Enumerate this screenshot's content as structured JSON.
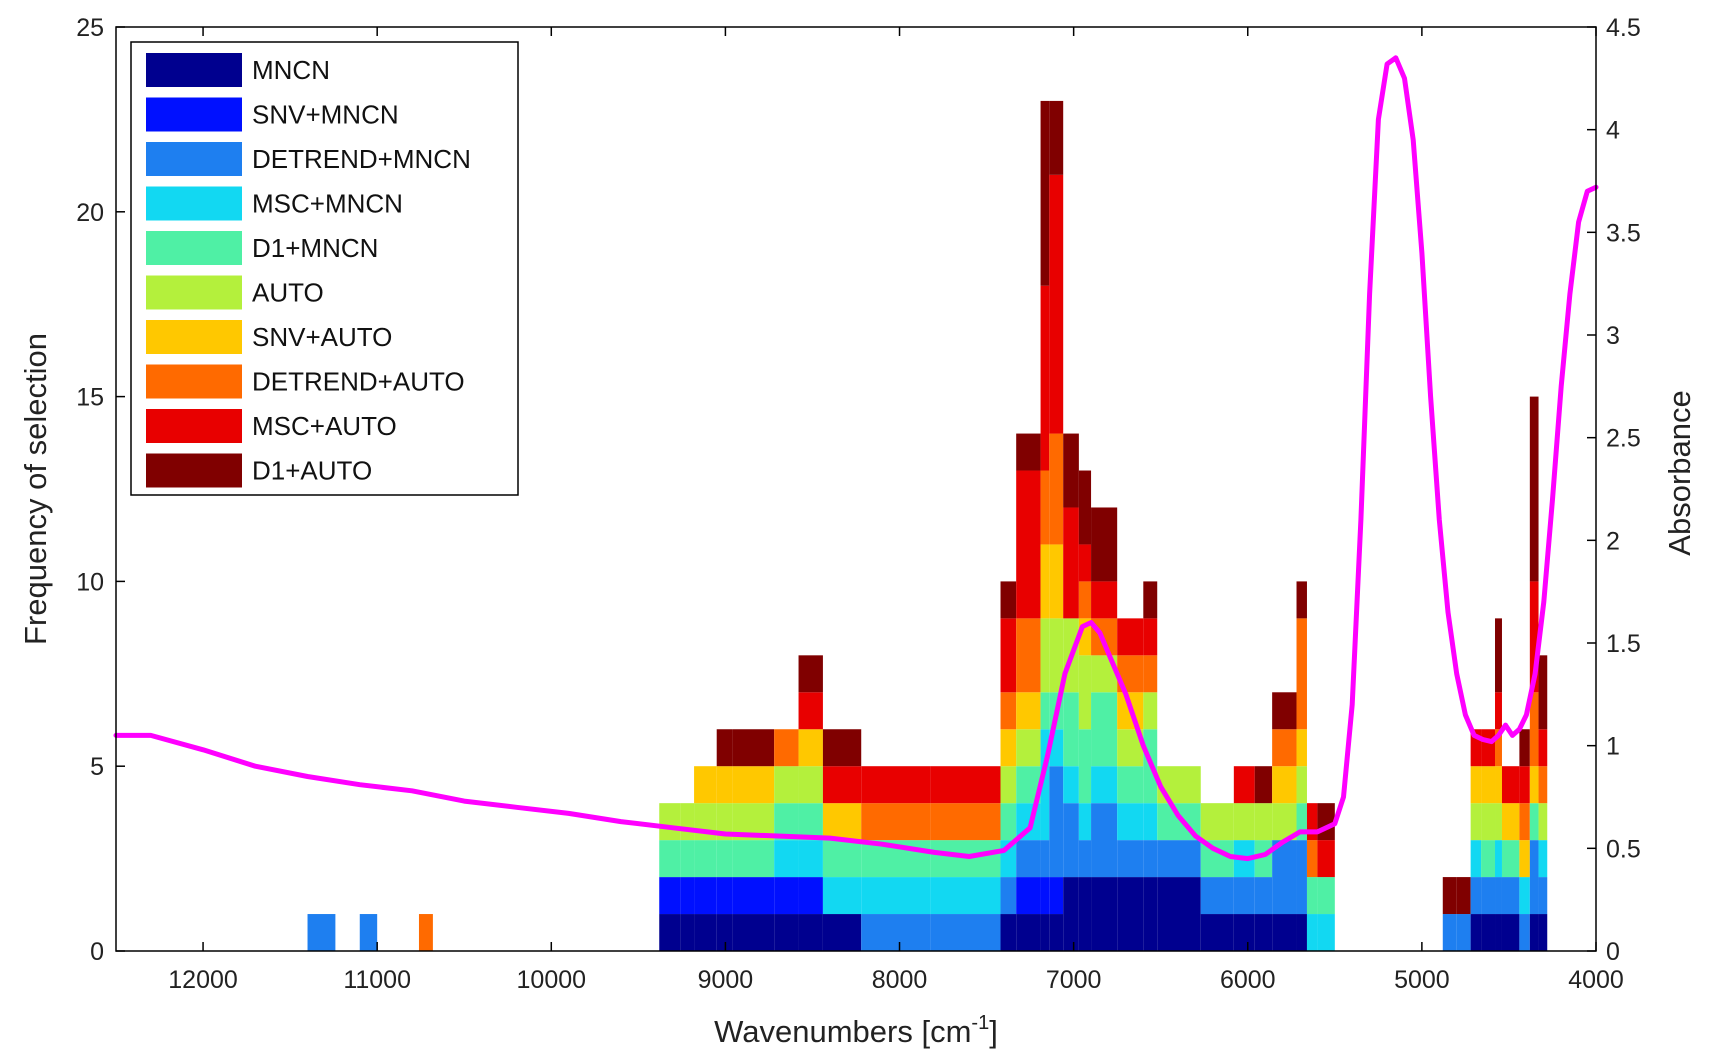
{
  "chart_data": {
    "type": "bar",
    "subtype": "stacked histogram with overlaid line on secondary axis",
    "xlabel": "Wavenumbers [cm",
    "xlabel_superscript": "-1",
    "xlabel_suffix": "]",
    "ylabel_left": "Frequency of selection",
    "ylabel_right": "Absorbance",
    "x_reversed": true,
    "xlim": [
      12500,
      4000
    ],
    "ylim_left": [
      0,
      25
    ],
    "ylim_right": [
      0,
      4.5
    ],
    "x_ticks": [
      "12000",
      "11000",
      "10000",
      "9000",
      "8000",
      "7000",
      "6000",
      "5000",
      "4000"
    ],
    "x_tick_values": [
      12000,
      11000,
      10000,
      9000,
      8000,
      7000,
      6000,
      5000,
      4000
    ],
    "y_left_ticks": [
      "0",
      "5",
      "10",
      "15",
      "20",
      "25"
    ],
    "y_left_tick_values": [
      0,
      5,
      10,
      15,
      20,
      25
    ],
    "y_right_ticks": [
      "0",
      "0.5",
      "1",
      "1.5",
      "2",
      "2.5",
      "3",
      "3.5",
      "4",
      "4.5"
    ],
    "y_right_tick_values": [
      0,
      0.5,
      1,
      1.5,
      2,
      2.5,
      3,
      3.5,
      4,
      4.5
    ],
    "legend_position": "top-left",
    "series": [
      {
        "name": "MNCN",
        "color": "#00008f"
      },
      {
        "name": "SNV+MNCN",
        "color": "#0010ff"
      },
      {
        "name": "DETREND+MNCN",
        "color": "#1e7ff0"
      },
      {
        "name": "MSC+MNCN",
        "color": "#12d8f2"
      },
      {
        "name": "D1+MNCN",
        "color": "#4ff0a5"
      },
      {
        "name": "AUTO",
        "color": "#b4f03c"
      },
      {
        "name": "SNV+AUTO",
        "color": "#ffc800"
      },
      {
        "name": "DETREND+AUTO",
        "color": "#ff6a00"
      },
      {
        "name": "MSC+AUTO",
        "color": "#e80000"
      },
      {
        "name": "D1+AUTO",
        "color": "#800000"
      }
    ],
    "bars": [
      {
        "x0": 11400,
        "x1": 11240,
        "stack": [
          [
            2,
            1
          ]
        ]
      },
      {
        "x0": 11100,
        "x1": 11000,
        "stack": [
          [
            2,
            1
          ]
        ]
      },
      {
        "x0": 10760,
        "x1": 10680,
        "stack": [
          [
            7,
            1
          ]
        ]
      },
      {
        "x0": 9380,
        "x1": 9260,
        "stack": [
          [
            0,
            1
          ],
          [
            1,
            1
          ],
          [
            4,
            1
          ],
          [
            5,
            1
          ]
        ]
      },
      {
        "x0": 9260,
        "x1": 9180,
        "stack": [
          [
            0,
            1
          ],
          [
            1,
            1
          ],
          [
            4,
            1
          ],
          [
            5,
            1
          ]
        ]
      },
      {
        "x0": 9180,
        "x1": 9050,
        "stack": [
          [
            0,
            1
          ],
          [
            1,
            1
          ],
          [
            4,
            1
          ],
          [
            5,
            1
          ],
          [
            6,
            1
          ]
        ]
      },
      {
        "x0": 9050,
        "x1": 8960,
        "stack": [
          [
            0,
            1
          ],
          [
            1,
            1
          ],
          [
            4,
            1
          ],
          [
            5,
            1
          ],
          [
            6,
            1
          ],
          [
            9,
            1
          ]
        ]
      },
      {
        "x0": 8960,
        "x1": 8720,
        "stack": [
          [
            0,
            1
          ],
          [
            1,
            1
          ],
          [
            4,
            1
          ],
          [
            5,
            1
          ],
          [
            6,
            1
          ],
          [
            9,
            1
          ]
        ]
      },
      {
        "x0": 8720,
        "x1": 8580,
        "stack": [
          [
            0,
            1
          ],
          [
            1,
            1
          ],
          [
            3,
            1
          ],
          [
            4,
            1
          ],
          [
            5,
            1
          ],
          [
            7,
            1
          ]
        ]
      },
      {
        "x0": 8580,
        "x1": 8440,
        "stack": [
          [
            0,
            1
          ],
          [
            1,
            1
          ],
          [
            3,
            1
          ],
          [
            4,
            1
          ],
          [
            5,
            1
          ],
          [
            6,
            1
          ],
          [
            8,
            1
          ],
          [
            9,
            1
          ]
        ]
      },
      {
        "x0": 8440,
        "x1": 8220,
        "stack": [
          [
            0,
            1
          ],
          [
            3,
            1
          ],
          [
            4,
            1
          ],
          [
            6,
            1
          ],
          [
            8,
            1
          ],
          [
            9,
            1
          ]
        ]
      },
      {
        "x0": 8220,
        "x1": 7820,
        "stack": [
          [
            2,
            1
          ],
          [
            3,
            1
          ],
          [
            4,
            1
          ],
          [
            7,
            1
          ],
          [
            8,
            1
          ]
        ]
      },
      {
        "x0": 7820,
        "x1": 7420,
        "stack": [
          [
            2,
            1
          ],
          [
            3,
            1
          ],
          [
            4,
            1
          ],
          [
            7,
            1
          ],
          [
            8,
            1
          ]
        ]
      },
      {
        "x0": 7420,
        "x1": 7330,
        "stack": [
          [
            0,
            1
          ],
          [
            2,
            1
          ],
          [
            3,
            1
          ],
          [
            4,
            1
          ],
          [
            5,
            1
          ],
          [
            6,
            1
          ],
          [
            7,
            1
          ],
          [
            8,
            2
          ],
          [
            9,
            1
          ]
        ]
      },
      {
        "x0": 7330,
        "x1": 7190,
        "stack": [
          [
            0,
            1
          ],
          [
            1,
            1
          ],
          [
            2,
            1
          ],
          [
            3,
            1
          ],
          [
            4,
            1
          ],
          [
            5,
            1
          ],
          [
            6,
            1
          ],
          [
            7,
            2
          ],
          [
            8,
            4
          ],
          [
            9,
            1
          ]
        ]
      },
      {
        "x0": 7190,
        "x1": 7140,
        "stack": [
          [
            0,
            1
          ],
          [
            1,
            1
          ],
          [
            2,
            1
          ],
          [
            3,
            3
          ],
          [
            4,
            1
          ],
          [
            5,
            2
          ],
          [
            6,
            2
          ],
          [
            7,
            2
          ],
          [
            8,
            5
          ],
          [
            9,
            5
          ]
        ]
      },
      {
        "x0": 7140,
        "x1": 7060,
        "stack": [
          [
            0,
            1
          ],
          [
            1,
            1
          ],
          [
            2,
            3
          ],
          [
            3,
            1
          ],
          [
            4,
            1
          ],
          [
            5,
            2
          ],
          [
            6,
            2
          ],
          [
            7,
            3
          ],
          [
            8,
            7
          ],
          [
            9,
            2
          ]
        ]
      },
      {
        "x0": 7060,
        "x1": 6970,
        "stack": [
          [
            0,
            2
          ],
          [
            2,
            2
          ],
          [
            3,
            1
          ],
          [
            4,
            2
          ],
          [
            5,
            2
          ],
          [
            8,
            3
          ],
          [
            9,
            2
          ]
        ]
      },
      {
        "x0": 6970,
        "x1": 6900,
        "stack": [
          [
            0,
            2
          ],
          [
            2,
            1
          ],
          [
            3,
            1
          ],
          [
            4,
            2
          ],
          [
            5,
            2
          ],
          [
            6,
            1
          ],
          [
            7,
            1
          ],
          [
            8,
            1
          ],
          [
            9,
            2
          ]
        ]
      },
      {
        "x0": 6900,
        "x1": 6750,
        "stack": [
          [
            0,
            2
          ],
          [
            2,
            2
          ],
          [
            3,
            1
          ],
          [
            4,
            2
          ],
          [
            5,
            1
          ],
          [
            7,
            1
          ],
          [
            8,
            1
          ],
          [
            9,
            2
          ]
        ]
      },
      {
        "x0": 6750,
        "x1": 6600,
        "stack": [
          [
            0,
            2
          ],
          [
            2,
            1
          ],
          [
            3,
            1
          ],
          [
            4,
            1
          ],
          [
            5,
            1
          ],
          [
            6,
            1
          ],
          [
            7,
            1
          ],
          [
            8,
            1
          ]
        ]
      },
      {
        "x0": 6600,
        "x1": 6520,
        "stack": [
          [
            0,
            2
          ],
          [
            2,
            1
          ],
          [
            3,
            1
          ],
          [
            4,
            2
          ],
          [
            5,
            1
          ],
          [
            7,
            1
          ],
          [
            8,
            1
          ],
          [
            9,
            1
          ]
        ]
      },
      {
        "x0": 6520,
        "x1": 6270,
        "stack": [
          [
            0,
            2
          ],
          [
            2,
            1
          ],
          [
            4,
            1
          ],
          [
            5,
            1
          ]
        ]
      },
      {
        "x0": 6270,
        "x1": 6080,
        "stack": [
          [
            0,
            1
          ],
          [
            2,
            1
          ],
          [
            4,
            1
          ],
          [
            5,
            1
          ]
        ]
      },
      {
        "x0": 6080,
        "x1": 5960,
        "stack": [
          [
            0,
            1
          ],
          [
            2,
            1
          ],
          [
            3,
            1
          ],
          [
            5,
            1
          ],
          [
            8,
            1
          ]
        ]
      },
      {
        "x0": 5960,
        "x1": 5860,
        "stack": [
          [
            0,
            1
          ],
          [
            2,
            1
          ],
          [
            4,
            1
          ],
          [
            5,
            1
          ],
          [
            9,
            1
          ]
        ]
      },
      {
        "x0": 5860,
        "x1": 5720,
        "stack": [
          [
            0,
            1
          ],
          [
            2,
            2
          ],
          [
            5,
            1
          ],
          [
            6,
            1
          ],
          [
            7,
            1
          ],
          [
            9,
            1
          ]
        ]
      },
      {
        "x0": 5720,
        "x1": 5660,
        "stack": [
          [
            0,
            1
          ],
          [
            2,
            2
          ],
          [
            4,
            1
          ],
          [
            5,
            1
          ],
          [
            6,
            1
          ],
          [
            7,
            3
          ],
          [
            9,
            1
          ]
        ]
      },
      {
        "x0": 5660,
        "x1": 5600,
        "stack": [
          [
            3,
            1
          ],
          [
            4,
            1
          ],
          [
            7,
            1
          ],
          [
            8,
            1
          ]
        ]
      },
      {
        "x0": 5600,
        "x1": 5500,
        "stack": [
          [
            3,
            1
          ],
          [
            4,
            1
          ],
          [
            8,
            1
          ],
          [
            9,
            1
          ]
        ]
      },
      {
        "x0": 4880,
        "x1": 4800,
        "stack": [
          [
            2,
            1
          ],
          [
            9,
            1
          ]
        ]
      },
      {
        "x0": 4800,
        "x1": 4720,
        "stack": [
          [
            2,
            1
          ],
          [
            9,
            1
          ]
        ]
      },
      {
        "x0": 4720,
        "x1": 4660,
        "stack": [
          [
            0,
            1
          ],
          [
            2,
            1
          ],
          [
            3,
            1
          ],
          [
            5,
            1
          ],
          [
            6,
            1
          ],
          [
            8,
            1
          ]
        ]
      },
      {
        "x0": 4660,
        "x1": 4580,
        "stack": [
          [
            0,
            1
          ],
          [
            2,
            1
          ],
          [
            4,
            1
          ],
          [
            5,
            1
          ],
          [
            6,
            1
          ],
          [
            8,
            1
          ]
        ]
      },
      {
        "x0": 4580,
        "x1": 4540,
        "stack": [
          [
            0,
            1
          ],
          [
            2,
            1
          ],
          [
            3,
            1
          ],
          [
            5,
            1
          ],
          [
            6,
            1
          ],
          [
            7,
            1
          ],
          [
            8,
            1
          ],
          [
            9,
            2
          ]
        ]
      },
      {
        "x0": 4540,
        "x1": 4440,
        "stack": [
          [
            0,
            1
          ],
          [
            2,
            1
          ],
          [
            4,
            1
          ],
          [
            6,
            1
          ],
          [
            8,
            1
          ]
        ]
      },
      {
        "x0": 4440,
        "x1": 4380,
        "stack": [
          [
            2,
            1
          ],
          [
            3,
            1
          ],
          [
            6,
            1
          ],
          [
            7,
            1
          ],
          [
            8,
            1
          ],
          [
            9,
            1
          ]
        ]
      },
      {
        "x0": 4380,
        "x1": 4330,
        "stack": [
          [
            0,
            1
          ],
          [
            2,
            2
          ],
          [
            4,
            1
          ],
          [
            6,
            1
          ],
          [
            7,
            2
          ],
          [
            8,
            3
          ],
          [
            9,
            5
          ]
        ]
      },
      {
        "x0": 4330,
        "x1": 4280,
        "stack": [
          [
            0,
            1
          ],
          [
            2,
            1
          ],
          [
            3,
            1
          ],
          [
            5,
            1
          ],
          [
            7,
            1
          ],
          [
            8,
            1
          ],
          [
            9,
            2
          ]
        ]
      }
    ],
    "absorbance_line": {
      "color": "#ff00ff",
      "x": [
        12500,
        12300,
        12000,
        11700,
        11400,
        11100,
        10800,
        10500,
        10200,
        9900,
        9600,
        9300,
        9000,
        8700,
        8400,
        8100,
        7800,
        7600,
        7400,
        7250,
        7150,
        7050,
        6950,
        6900,
        6850,
        6800,
        6700,
        6600,
        6500,
        6400,
        6300,
        6200,
        6100,
        6000,
        5900,
        5800,
        5700,
        5600,
        5500,
        5450,
        5400,
        5350,
        5300,
        5250,
        5200,
        5150,
        5100,
        5050,
        5000,
        4950,
        4900,
        4850,
        4800,
        4750,
        4700,
        4650,
        4600,
        4560,
        4520,
        4480,
        4440,
        4400,
        4350,
        4300,
        4250,
        4200,
        4150,
        4100,
        4050,
        4000
      ],
      "y": [
        1.05,
        1.05,
        0.98,
        0.9,
        0.85,
        0.81,
        0.78,
        0.73,
        0.7,
        0.67,
        0.63,
        0.6,
        0.57,
        0.56,
        0.55,
        0.52,
        0.48,
        0.46,
        0.49,
        0.6,
        0.95,
        1.35,
        1.58,
        1.6,
        1.55,
        1.45,
        1.25,
        1.0,
        0.8,
        0.66,
        0.56,
        0.5,
        0.46,
        0.45,
        0.47,
        0.53,
        0.58,
        0.58,
        0.62,
        0.75,
        1.2,
        2.1,
        3.2,
        4.05,
        4.32,
        4.35,
        4.25,
        3.95,
        3.4,
        2.7,
        2.1,
        1.65,
        1.35,
        1.15,
        1.05,
        1.03,
        1.02,
        1.05,
        1.1,
        1.05,
        1.08,
        1.15,
        1.35,
        1.7,
        2.2,
        2.75,
        3.2,
        3.55,
        3.7,
        3.72
      ]
    }
  }
}
